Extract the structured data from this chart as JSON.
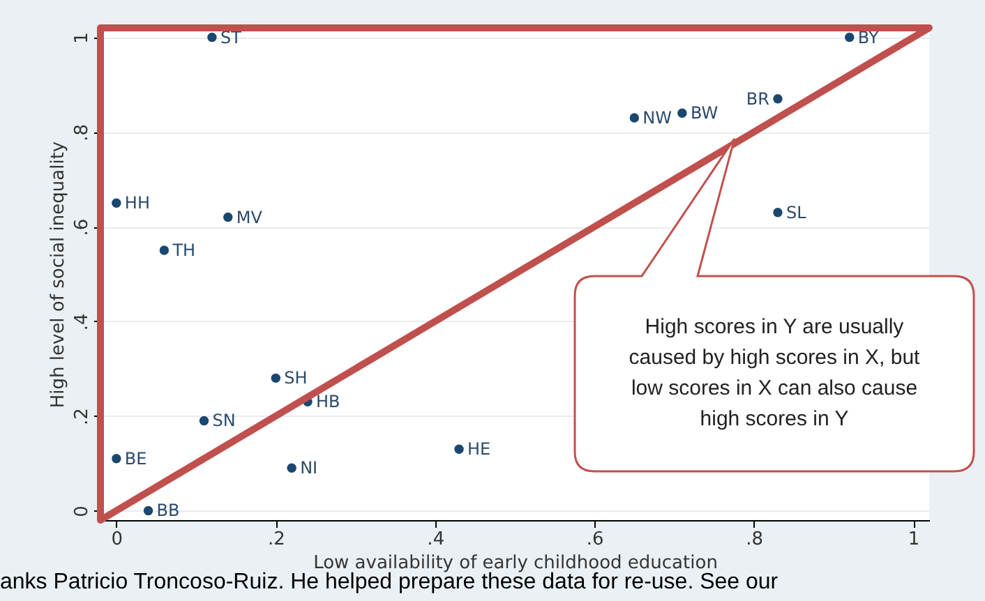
{
  "chart_data": {
    "type": "scatter",
    "xlabel": "Low availability of early childhood education",
    "ylabel": "High level of social inequality",
    "x": [
      0.12,
      0.92,
      0.65,
      0.71,
      0.83,
      0.83,
      0,
      0.14,
      0.06,
      0.2,
      0.24,
      0.11,
      0,
      0.22,
      0.43,
      0.04
    ],
    "values": [
      1,
      1,
      0.83,
      0.84,
      0.87,
      0.63,
      0.65,
      0.62,
      0.55,
      0.28,
      0.23,
      0.19,
      0.11,
      0.09,
      0.13,
      0
    ],
    "value_labels": [
      "ST",
      "BY",
      "NW",
      "BW",
      "BR",
      "SL",
      "HH",
      "MV",
      "TH",
      "SH",
      "HB",
      "SN",
      "BE",
      "NI",
      "HE",
      "BB"
    ],
    "color": "#1a476f",
    "marker": "circle",
    "grid": "y",
    "xlim": [
      -0.02,
      1.02
    ],
    "ylim": [
      -0.02,
      1.02
    ],
    "xticks": [
      0,
      {
        "value": 0.2,
        "label": ".2"
      },
      {
        "value": 0.4,
        "label": ".4"
      },
      {
        "value": 0.6,
        "label": ".6"
      },
      {
        "value": 0.8,
        "label": ".8"
      },
      1
    ],
    "yticks": [
      0,
      {
        "value": 0.2,
        "label": ".2"
      },
      {
        "value": 0.4,
        "label": ".4"
      },
      {
        "value": 0.6,
        "label": ".6"
      },
      {
        "value": 0.8,
        "label": ".8"
      },
      1
    ],
    "annotations": [
      "High scores in Y are usually caused by high scores in X, but low scores in X can also cause high scores in Y",
      "anks Patricio Troncoso-Ruiz.  He helped prepare these data for re-use.  See our"
    ]
  }
}
